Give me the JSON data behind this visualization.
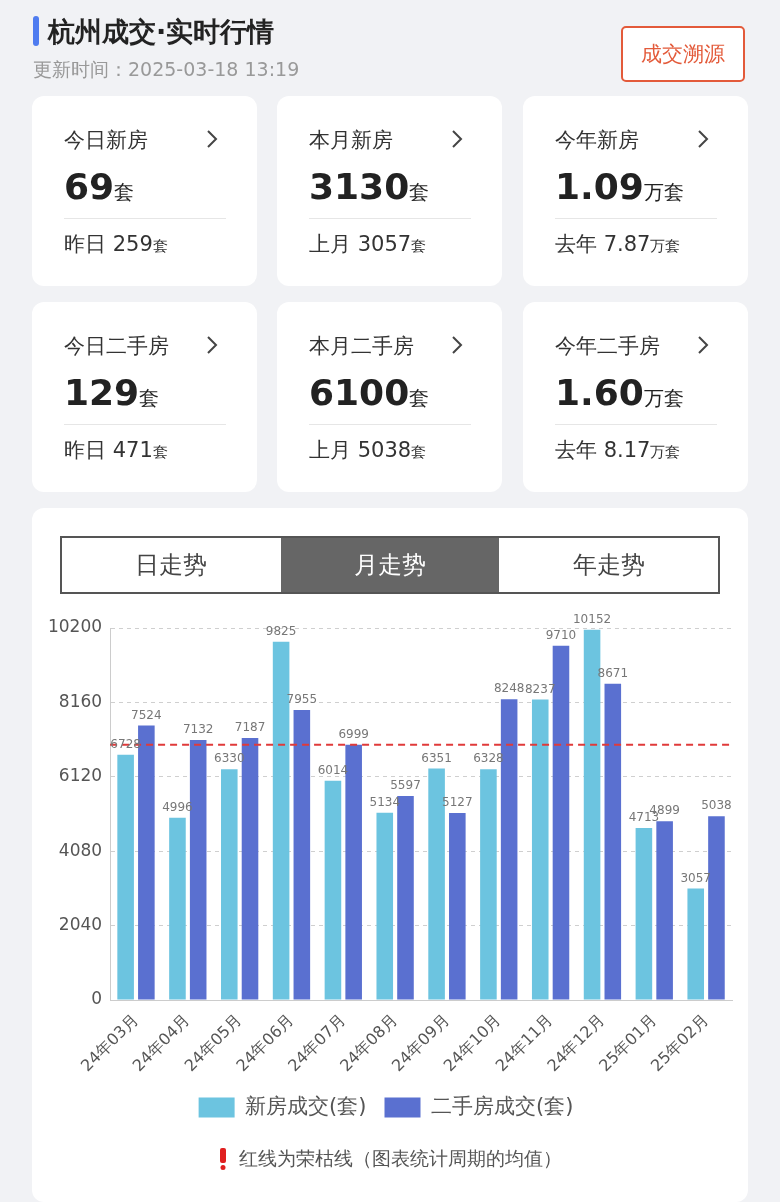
{
  "chart_data": [
    {
      "type": "other",
      "title": "杭州成交·实时行情",
      "subtitle": "更新时间：2025-03-18 13:19",
      "annotations": [
        "成交溯源",
        "今日新房",
        "69",
        "套",
        "昨日 259",
        "套",
        "本月新房",
        "3130",
        "套",
        "上月 3057",
        "套",
        "今年新房",
        "1.09",
        "万套",
        "去年 7.87",
        "万套",
        "今日二手房",
        "129",
        "套",
        "昨日 471",
        "套",
        "本月二手房",
        "6100",
        "套",
        "上月 5038",
        "套",
        "今年二手房",
        "1.60",
        "万套",
        "去年 8.17",
        "万套"
      ]
    },
    {
      "type": "bar",
      "categories": [
        "24年03月",
        "24年04月",
        "24年05月",
        "24年06月",
        "24年07月",
        "24年08月",
        "24年09月",
        "24年10月",
        "24年11月",
        "24年12月",
        "25年01月",
        "25年02月"
      ],
      "series": [
        {
          "name": "新房成交(套)",
          "color": "#6cc4e0",
          "values": [
            6728,
            4996,
            6330,
            9825,
            6014,
            5134,
            6351,
            6328,
            8237,
            10152,
            4713,
            3057
          ]
        },
        {
          "name": "二手房成交(套)",
          "color": "#5a70d0",
          "values": [
            7524,
            7132,
            7187,
            7955,
            6999,
            5597,
            5127,
            8248,
            9710,
            8671,
            4899,
            5038
          ]
        }
      ],
      "ylim": [
        0,
        10200
      ],
      "yticks": [
        0,
        2040,
        4080,
        6120,
        8160,
        10200
      ],
      "grid": "y",
      "legend": "bottom",
      "data_labels": true,
      "ref_lines": [
        {
          "axis": "y",
          "value": 7000,
          "color": "#e03a3a",
          "line_style": "dashed"
        }
      ],
      "annotations": [
        "日走势",
        "月走势",
        "年走势",
        "红线为荣枯线（图表统计周期的均值）"
      ]
    }
  ]
}
